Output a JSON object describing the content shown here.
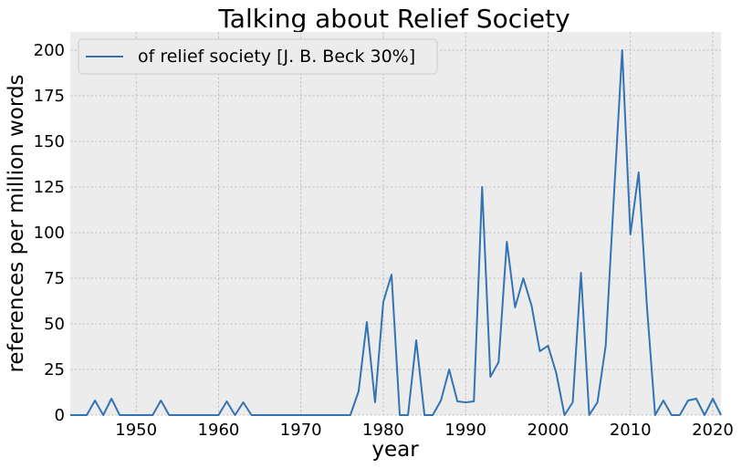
{
  "chart_data": {
    "type": "line",
    "title": "Talking about Relief Society",
    "xlabel": "year",
    "ylabel": "references per million words",
    "xlim": [
      1942,
      2021
    ],
    "ylim": [
      0,
      210
    ],
    "x_ticks": [
      1950,
      1960,
      1970,
      1980,
      1990,
      2000,
      2010,
      2020
    ],
    "y_ticks": [
      0,
      25,
      50,
      75,
      100,
      125,
      150,
      175,
      200
    ],
    "grid": true,
    "legend_position": "top-left",
    "series": [
      {
        "name": "of relief society [J. B. Beck 30%]",
        "color": "#3274b3",
        "x": [
          1942,
          1943,
          1944,
          1945,
          1946,
          1947,
          1948,
          1949,
          1950,
          1951,
          1952,
          1953,
          1954,
          1955,
          1956,
          1957,
          1958,
          1959,
          1960,
          1961,
          1962,
          1963,
          1964,
          1965,
          1966,
          1967,
          1968,
          1969,
          1970,
          1971,
          1972,
          1973,
          1974,
          1975,
          1976,
          1977,
          1978,
          1979,
          1980,
          1981,
          1982,
          1983,
          1984,
          1985,
          1986,
          1987,
          1988,
          1989,
          1990,
          1991,
          1992,
          1993,
          1994,
          1995,
          1996,
          1997,
          1998,
          1999,
          2000,
          2001,
          2002,
          2003,
          2004,
          2005,
          2006,
          2007,
          2008,
          2009,
          2010,
          2011,
          2012,
          2013,
          2014,
          2015,
          2016,
          2017,
          2018,
          2019,
          2020,
          2021
        ],
        "y": [
          0,
          0,
          0,
          8,
          0,
          9,
          0,
          0,
          0,
          0,
          0,
          8,
          0,
          0,
          0,
          0,
          0,
          0,
          0,
          7.5,
          0,
          7,
          0,
          0,
          0,
          0,
          0,
          0,
          0,
          0,
          0,
          0,
          0,
          0,
          0,
          13,
          51,
          7,
          62,
          77,
          0,
          0,
          41,
          0,
          0,
          8,
          25,
          7.5,
          7,
          7.5,
          125,
          21,
          29,
          95,
          59,
          75,
          60,
          35,
          38,
          23,
          0,
          7,
          78,
          0,
          7,
          38,
          120,
          200,
          99,
          133,
          60,
          0,
          8,
          0,
          0,
          8,
          9,
          0,
          9,
          0
        ]
      }
    ]
  }
}
